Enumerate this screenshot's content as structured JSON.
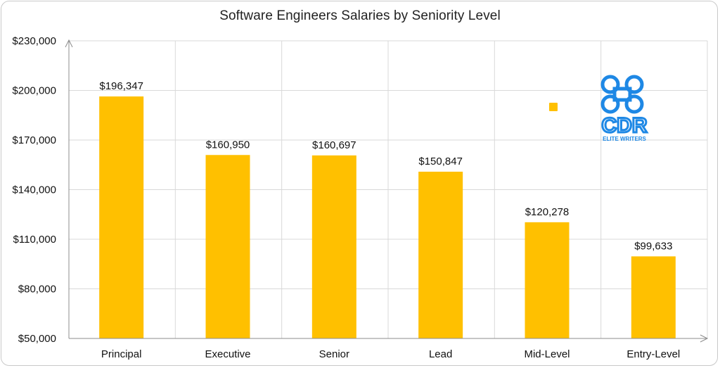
{
  "chart_data": {
    "type": "bar",
    "title": "Software Engineers Salaries by Seniority Level",
    "categories": [
      "Principal",
      "Executive",
      "Senior",
      "Lead",
      "Mid-Level",
      "Entry-Level"
    ],
    "values": [
      196347,
      160950,
      160697,
      150847,
      120278,
      99633
    ],
    "data_labels": [
      "$196,347",
      "$160,950",
      "$160,697",
      "$150,847",
      "$120,278",
      "$99,633"
    ],
    "ylim": [
      50000,
      230000
    ],
    "yticks": [
      50000,
      80000,
      110000,
      140000,
      170000,
      200000,
      230000
    ],
    "ytick_labels": [
      "$50,000",
      "$80,000",
      "$110,000",
      "$140,000",
      "$170,000",
      "$200,000",
      "$230,000"
    ],
    "xlabel": "",
    "ylabel": "",
    "grid": true,
    "bar_color": "#ffc000",
    "grid_color": "#d9d9d9"
  },
  "logo": {
    "text_main": "CDR",
    "text_sub": "ELITE WRITERS",
    "color": "#1e88e5"
  }
}
